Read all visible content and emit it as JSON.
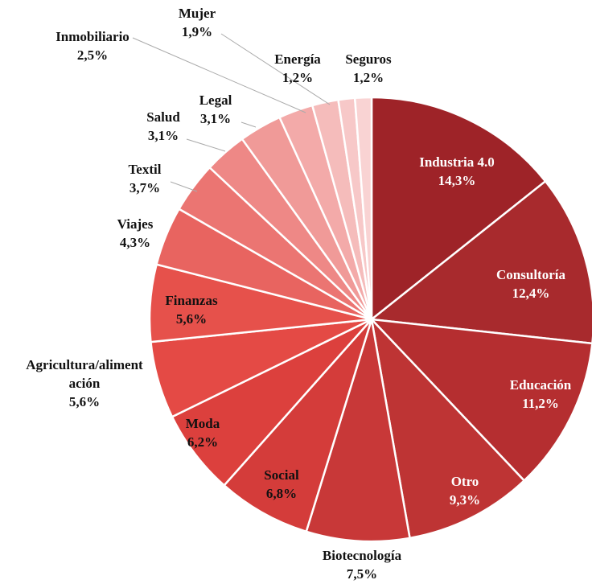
{
  "chart_data": {
    "type": "pie",
    "categories": [
      "Industria 4.0",
      "Consultoría",
      "Educación",
      "Otro",
      "Biotecnología",
      "Social",
      "Moda",
      "Agricultura/alimentación",
      "Finanzas",
      "Viajes",
      "Textil",
      "Salud",
      "Legal",
      "Inmobiliario",
      "Mujer",
      "Energía",
      "Seguros"
    ],
    "values": [
      14.3,
      12.4,
      11.2,
      9.3,
      7.5,
      6.8,
      6.2,
      5.6,
      5.6,
      4.3,
      3.7,
      3.1,
      3.1,
      2.5,
      1.9,
      1.2,
      1.2
    ],
    "value_labels": [
      "14,3%",
      "12,4%",
      "11,2%",
      "9,3%",
      "7,5%",
      "6,8%",
      "6,2%",
      "5,6%",
      "5,6%",
      "4,3%",
      "3,7%",
      "3,1%",
      "3,1%",
      "2,5%",
      "1,9%",
      "1,2%",
      "1,2%"
    ],
    "colors": [
      "#9e2328",
      "#a82a2d",
      "#b52e30",
      "#be3434",
      "#c83838",
      "#d43c3a",
      "#dc403d",
      "#e44a45",
      "#e6514b",
      "#e86460",
      "#eb7572",
      "#ee8886",
      "#f09a98",
      "#f3aaa9",
      "#f5bcbb",
      "#f7c8c8",
      "#f9d3d3"
    ]
  }
}
